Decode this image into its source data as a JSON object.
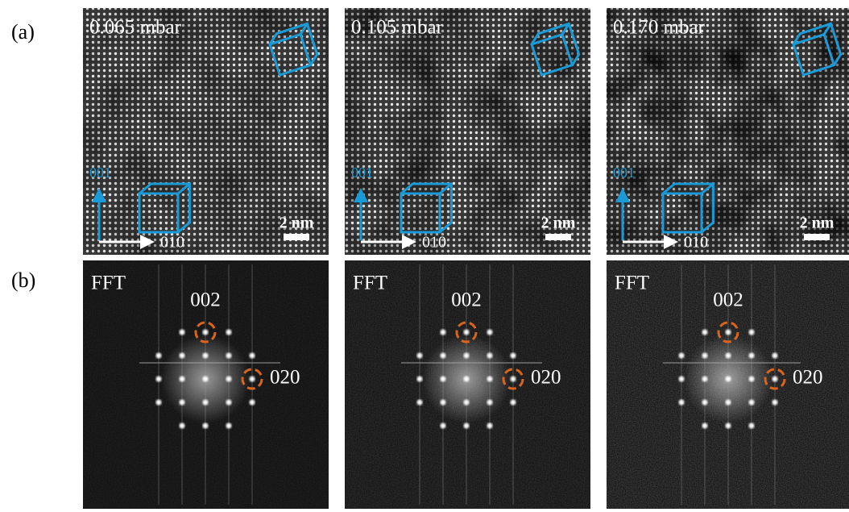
{
  "row_labels": [
    "(a)",
    "(b)"
  ],
  "hrtem": [
    {
      "pressure": "0.065 mbar",
      "axis_vertical": "001",
      "axis_horizontal": "010",
      "scale_bar": "2 nm"
    },
    {
      "pressure": "0.105 mbar",
      "axis_vertical": "001",
      "axis_horizontal": "010",
      "scale_bar": "2 nm"
    },
    {
      "pressure": "0.170 mbar",
      "axis_vertical": "001",
      "axis_horizontal": "010",
      "scale_bar": "2 nm"
    }
  ],
  "fft": [
    {
      "label": "FFT",
      "spot_vertical": "002",
      "spot_horizontal": "020"
    },
    {
      "label": "FFT",
      "spot_vertical": "002",
      "spot_horizontal": "020"
    },
    {
      "label": "FFT",
      "spot_vertical": "002",
      "spot_horizontal": "020"
    }
  ]
}
